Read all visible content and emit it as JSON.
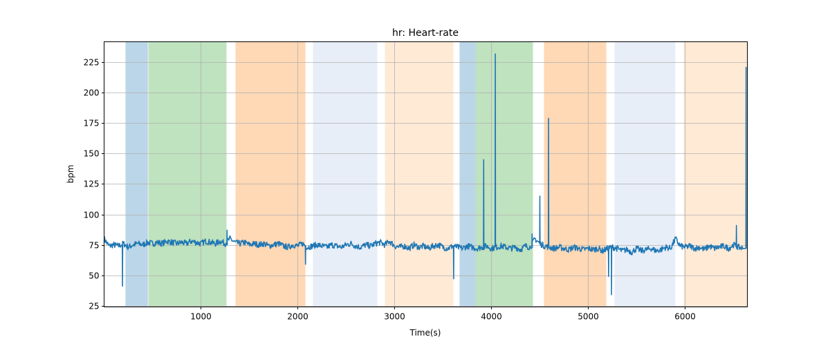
{
  "chart_data": {
    "type": "line",
    "title": "hr: Heart-rate",
    "xlabel": "Time(s)",
    "ylabel": "bpm",
    "xlim": [
      0,
      6643
    ],
    "ylim": [
      23.9,
      242
    ],
    "grid": true,
    "xticks": [
      1000,
      2000,
      3000,
      4000,
      5000,
      6000
    ],
    "xtick_labels": [
      "1000",
      "2000",
      "3000",
      "4000",
      "5000",
      "6000"
    ],
    "yticks": [
      25,
      50,
      75,
      100,
      125,
      150,
      175,
      200,
      225
    ],
    "ytick_labels": [
      "25",
      "50",
      "75",
      "100",
      "125",
      "150",
      "175",
      "200",
      "225"
    ],
    "line_color": "#1f77b4",
    "regions": [
      {
        "start": 221,
        "end": 452,
        "color": "#1f77b4",
        "alpha": 0.3
      },
      {
        "start": 457,
        "end": 1264,
        "color": "#2ca02c",
        "alpha": 0.3
      },
      {
        "start": 1357,
        "end": 2079,
        "color": "#ff7f0e",
        "alpha": 0.3
      },
      {
        "start": 2157,
        "end": 2821,
        "color": "#aec7e8",
        "alpha": 0.3
      },
      {
        "start": 2900,
        "end": 3607,
        "color": "#ffbb78",
        "alpha": 0.3
      },
      {
        "start": 3671,
        "end": 3836,
        "color": "#1f77b4",
        "alpha": 0.3
      },
      {
        "start": 3836,
        "end": 4429,
        "color": "#2ca02c",
        "alpha": 0.3
      },
      {
        "start": 4543,
        "end": 5186,
        "color": "#ff7f0e",
        "alpha": 0.3
      },
      {
        "start": 5271,
        "end": 5900,
        "color": "#aec7e8",
        "alpha": 0.3
      },
      {
        "start": 5986,
        "end": 6643,
        "color": "#ffbb78",
        "alpha": 0.3
      }
    ],
    "series": [
      {
        "name": "hr",
        "x_start": 0,
        "x_step": 50,
        "values": [
          80,
          74,
          75,
          74,
          76,
          73,
          75,
          76,
          75,
          77,
          76,
          77,
          76,
          78,
          77,
          76,
          77,
          76,
          78,
          77,
          76,
          78,
          77,
          76,
          78,
          76,
          80,
          77,
          76,
          77,
          75,
          76,
          75,
          76,
          74,
          75,
          76,
          74,
          73,
          75,
          74,
          76,
          73,
          74,
          75,
          74,
          73,
          75,
          74,
          73,
          75,
          76,
          74,
          73,
          75,
          74,
          76,
          77,
          75,
          78,
          74,
          73,
          74,
          72,
          75,
          73,
          74,
          72,
          74,
          75,
          73,
          72,
          74,
          73,
          72,
          74,
          73,
          72,
          73,
          74,
          72,
          73,
          74,
          73,
          72,
          73,
          71,
          74,
          73,
          80,
          76,
          74,
          73,
          72,
          73,
          72,
          71,
          73,
          72,
          71,
          72,
          71,
          72,
          70,
          72,
          73,
          72,
          70,
          71,
          69,
          72,
          70,
          71,
          72,
          70,
          71,
          73,
          72,
          80,
          74,
          73,
          74,
          72,
          73,
          71,
          74,
          72,
          73,
          74,
          72,
          75,
          73,
          72
        ],
        "spikes": [
          [
            190,
            41
          ],
          [
            1270,
            87
          ],
          [
            2080,
            59
          ],
          [
            3610,
            47
          ],
          [
            3920,
            145
          ],
          [
            4040,
            232
          ],
          [
            4420,
            84
          ],
          [
            4500,
            115
          ],
          [
            4590,
            179
          ],
          [
            5210,
            49
          ],
          [
            5240,
            34
          ],
          [
            6530,
            91
          ],
          [
            6630,
            221
          ]
        ]
      }
    ]
  }
}
